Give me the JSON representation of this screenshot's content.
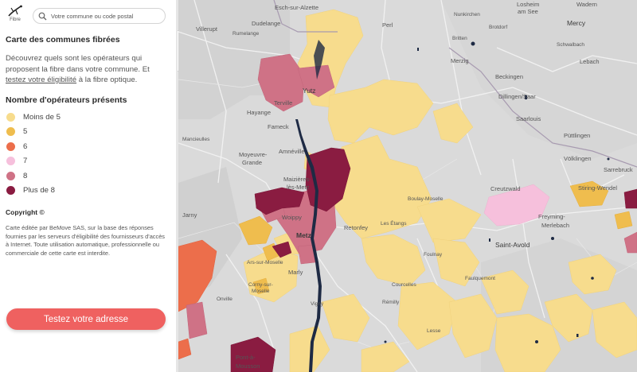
{
  "header": {
    "logo_text": "Fibre",
    "search_placeholder": "Votre commune ou code postal"
  },
  "sidebar": {
    "title": "Carte des communes fibrées",
    "description_part1": "Découvrez quels sont les opérateurs qui proposent la fibre dans votre commune. Et ",
    "description_link": "testez votre éligibilité",
    "description_part2": " à la fibre optique.",
    "legend_title": "Nombre d'opérateurs présents",
    "legend": [
      {
        "label": "Moins de 5",
        "color": "#f7dc8d"
      },
      {
        "label": "5",
        "color": "#efbd4e"
      },
      {
        "label": "6",
        "color": "#ec6e4b"
      },
      {
        "label": "7",
        "color": "#f6c0dc"
      },
      {
        "label": "8",
        "color": "#cf7286"
      },
      {
        "label": "Plus de 8",
        "color": "#8a1c41"
      }
    ],
    "copyright_title": "Copyright ©",
    "copyright_text": "Carte éditée par BeMove SAS, sur la base des réponses fournies par les serveurs d'éligibilité des fournisseurs d'accès à Internet. Toute utilisation automatique, professionnelle ou commerciale de cette carte est interdite.",
    "cta_label": "Testez votre adresse"
  },
  "map": {
    "places": [
      {
        "name": "Esch-sur-Alzette",
        "type": "normal"
      },
      {
        "name": "Dudelange",
        "type": "normal"
      },
      {
        "name": "Villerupt",
        "type": "normal"
      },
      {
        "name": "Rumelange",
        "type": "small"
      },
      {
        "name": "Perl",
        "type": "normal"
      },
      {
        "name": "Mercy",
        "type": "big"
      },
      {
        "name": "Losheim",
        "type": "normal"
      },
      {
        "name": "am See",
        "type": "normal"
      },
      {
        "name": "Wadern",
        "type": "normal"
      },
      {
        "name": "Nunkirchen",
        "type": "small"
      },
      {
        "name": "Britten",
        "type": "small"
      },
      {
        "name": "Brotdorf",
        "type": "small"
      },
      {
        "name": "Schwalbach",
        "type": "small"
      },
      {
        "name": "Lebach",
        "type": "normal"
      },
      {
        "name": "Merzig",
        "type": "normal"
      },
      {
        "name": "Beckingen",
        "type": "normal"
      },
      {
        "name": "Dillingen/Saar",
        "type": "normal"
      },
      {
        "name": "Saarlouis",
        "type": "normal"
      },
      {
        "name": "Püttlingen",
        "type": "normal"
      },
      {
        "name": "Völklingen",
        "type": "normal"
      },
      {
        "name": "Sarrebruck",
        "type": "normal"
      },
      {
        "name": "Yutz",
        "type": "big"
      },
      {
        "name": "Terville",
        "type": "normal"
      },
      {
        "name": "Hayange",
        "type": "normal"
      },
      {
        "name": "Fameck",
        "type": "normal"
      },
      {
        "name": "Mancieulles",
        "type": "small"
      },
      {
        "name": "Moyeuvre-",
        "type": "normal"
      },
      {
        "name": "Grande",
        "type": "normal"
      },
      {
        "name": "Amnéville",
        "type": "normal"
      },
      {
        "name": "Maizières-",
        "type": "normal"
      },
      {
        "name": "lès-Metz",
        "type": "normal"
      },
      {
        "name": "Jarny",
        "type": "normal"
      },
      {
        "name": "Woippy",
        "type": "normal"
      },
      {
        "name": "Metz",
        "type": "big"
      },
      {
        "name": "Retonfey",
        "type": "normal"
      },
      {
        "name": "Les Étangs",
        "type": "small"
      },
      {
        "name": "Boulay-Moselle",
        "type": "small"
      },
      {
        "name": "Creutzwald",
        "type": "normal"
      },
      {
        "name": "Freyming-",
        "type": "normal"
      },
      {
        "name": "Merlebach",
        "type": "normal"
      },
      {
        "name": "Stiring-Wendel",
        "type": "normal"
      },
      {
        "name": "Saint-Avold",
        "type": "big"
      },
      {
        "name": "Ars-sur-Moselle",
        "type": "small"
      },
      {
        "name": "Marly",
        "type": "normal"
      },
      {
        "name": "Corny-sur-",
        "type": "small"
      },
      {
        "name": "Moselle",
        "type": "small"
      },
      {
        "name": "Onville",
        "type": "small"
      },
      {
        "name": "Vigny",
        "type": "small"
      },
      {
        "name": "Rémilly",
        "type": "small"
      },
      {
        "name": "Faulquemont",
        "type": "small"
      },
      {
        "name": "Lesse",
        "type": "small"
      },
      {
        "name": "Courcelles",
        "type": "small"
      },
      {
        "name": "Foulnay",
        "type": "small"
      },
      {
        "name": "Pont-à-",
        "type": "normal"
      },
      {
        "name": "Mousson",
        "type": "normal"
      }
    ]
  }
}
